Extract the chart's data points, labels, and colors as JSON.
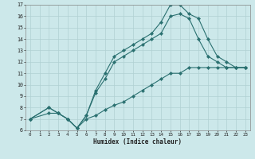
{
  "xlabel": "Humidex (Indice chaleur)",
  "bg_color": "#cce8ea",
  "grid_color": "#b0d0d2",
  "line_color": "#2a7070",
  "line1": {
    "x": [
      0,
      2,
      3,
      4,
      5,
      6,
      7,
      8,
      9,
      10,
      11,
      12,
      13,
      14,
      15,
      16,
      17,
      18,
      19,
      20,
      21,
      22,
      23
    ],
    "y": [
      7,
      8,
      7.5,
      7,
      6.2,
      7.3,
      9.5,
      11,
      12.5,
      13,
      13.5,
      14,
      14.5,
      15.5,
      17,
      17,
      16.2,
      15.8,
      14.0,
      12.5,
      12.0,
      11.5,
      11.5
    ]
  },
  "line2": {
    "x": [
      0,
      2,
      3,
      4,
      5,
      6,
      7,
      8,
      9,
      10,
      11,
      12,
      13,
      14,
      15,
      16,
      17,
      18,
      19,
      20,
      21,
      22,
      23
    ],
    "y": [
      7,
      8,
      7.5,
      7,
      6.2,
      7.3,
      9.3,
      10.5,
      12.0,
      12.5,
      13,
      13.5,
      14,
      14.5,
      16,
      16.2,
      15.8,
      14,
      12.5,
      12,
      11.5,
      11.5,
      11.5
    ]
  },
  "line3": {
    "x": [
      0,
      2,
      3,
      4,
      5,
      6,
      7,
      8,
      9,
      10,
      11,
      12,
      13,
      14,
      15,
      16,
      17,
      18,
      19,
      20,
      21,
      22,
      23
    ],
    "y": [
      7,
      7.5,
      7.5,
      7,
      6.2,
      7,
      7.3,
      7.8,
      8.2,
      8.5,
      9,
      9.5,
      10,
      10.5,
      11,
      11,
      11.5,
      11.5,
      11.5,
      11.5,
      11.5,
      11.5,
      11.5
    ]
  },
  "xlim": [
    -0.5,
    23.5
  ],
  "ylim": [
    6,
    17
  ],
  "xticks": [
    0,
    1,
    2,
    3,
    4,
    5,
    6,
    7,
    8,
    9,
    10,
    11,
    12,
    13,
    14,
    15,
    16,
    17,
    18,
    19,
    20,
    21,
    22,
    23
  ],
  "yticks": [
    6,
    7,
    8,
    9,
    10,
    11,
    12,
    13,
    14,
    15,
    16,
    17
  ]
}
